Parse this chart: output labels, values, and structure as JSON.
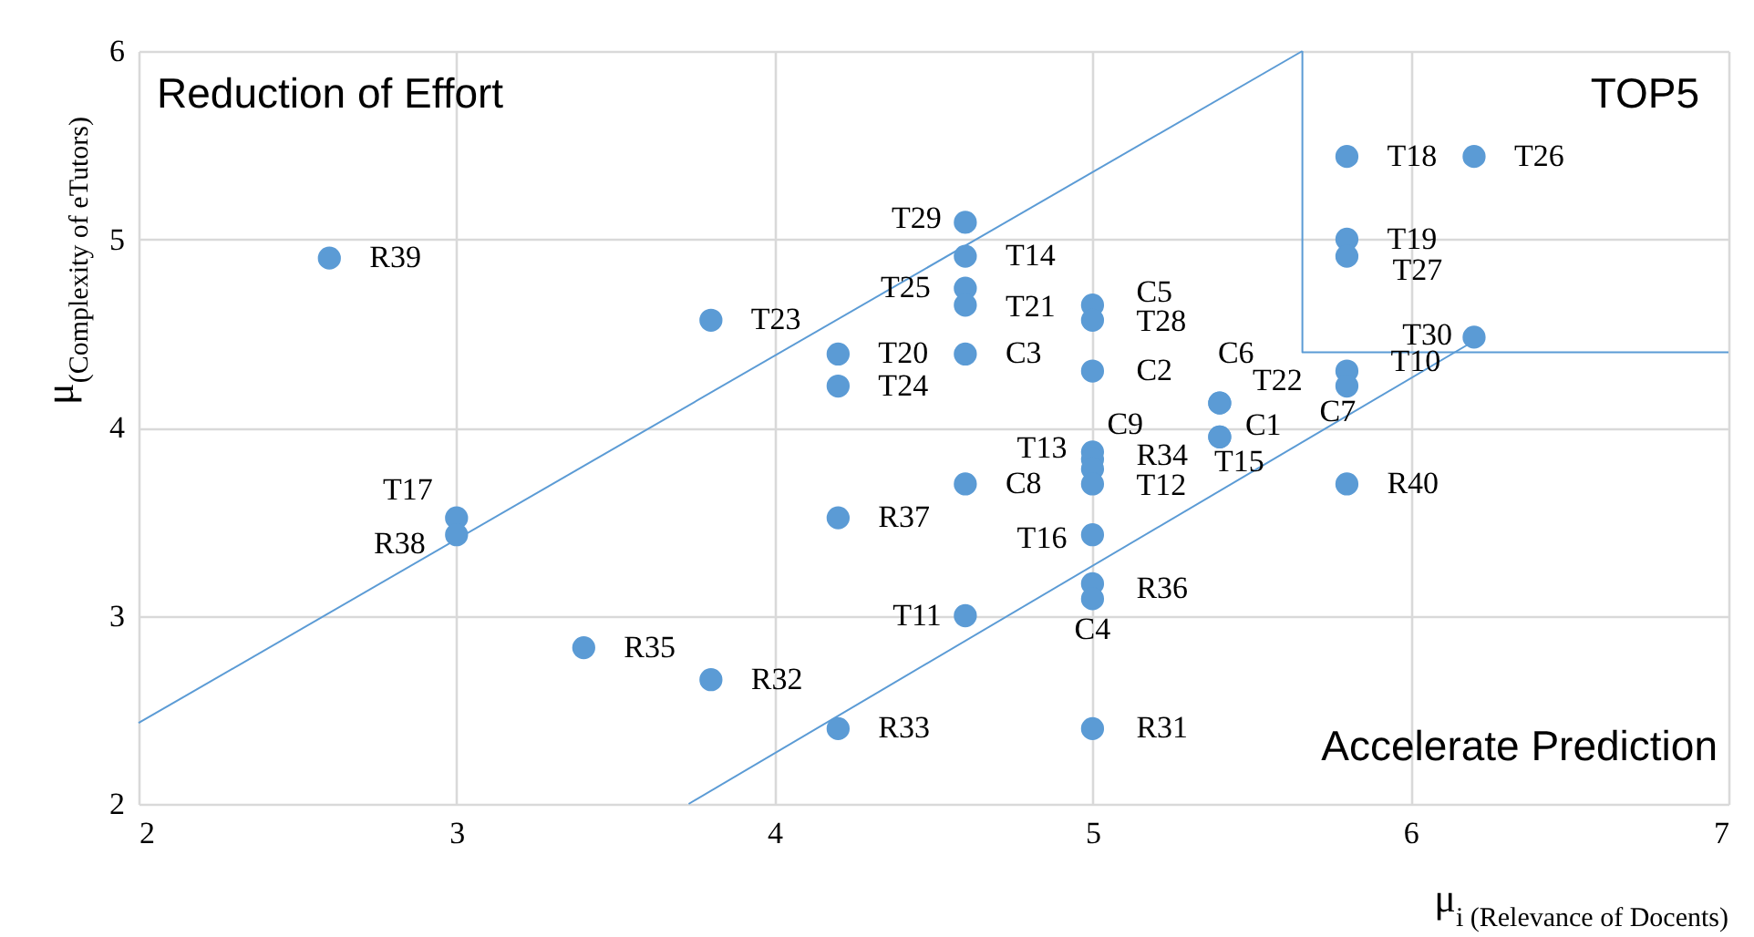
{
  "chart_data": {
    "type": "scatter",
    "xlabel": "μ$_{i (Relevance of Docents)}$",
    "ylabel": "μ$_{(Complexity of eTutors)}$",
    "annotations": [
      "Reduction of Effort",
      "TOP5",
      "Accelerate Prediction"
    ],
    "xlim": [
      2,
      7
    ],
    "ylim": [
      2,
      6
    ],
    "xticks": [
      2,
      3,
      4,
      5,
      6,
      7
    ],
    "yticks": [
      2,
      3,
      4,
      5,
      6
    ],
    "grid": true,
    "series": [
      {
        "marker": "circle",
        "color": "#5b9bd5",
        "x": [
          2.6,
          3.8,
          3.0,
          3.0,
          3.4,
          3.8,
          4.2,
          4.2,
          4.2,
          4.2,
          4.6,
          4.6,
          4.6,
          4.6,
          4.6,
          4.6,
          4.6,
          5.0,
          5.0,
          5.0,
          5.0,
          5.0,
          5.0,
          5.0,
          5.0,
          5.0,
          5.0,
          5.0,
          5.4,
          5.4,
          5.4,
          5.4,
          5.8,
          6.2,
          5.8,
          5.8,
          5.8,
          5.8,
          6.2,
          5.8
        ],
        "values": [
          4.9,
          4.57,
          3.52,
          3.43,
          2.83,
          2.66,
          2.4,
          4.39,
          4.22,
          3.52,
          5.09,
          4.91,
          4.74,
          4.65,
          4.39,
          3.7,
          3.0,
          4.65,
          4.57,
          4.3,
          3.87,
          3.83,
          3.78,
          3.7,
          3.43,
          3.17,
          3.09,
          2.4,
          4.13,
          4.13,
          3.95,
          3.95,
          5.44,
          5.44,
          5.0,
          4.91,
          4.3,
          4.22,
          4.48,
          3.7
        ],
        "value_labels": [
          "R39",
          "T23",
          "T17",
          "R38",
          "R35",
          "R32",
          "R33",
          "T20",
          "T24",
          "R37",
          "T29",
          "T14",
          "T25",
          "T21",
          "C3",
          "C8",
          "T11",
          "C5",
          "T28",
          "C2",
          "C9",
          "T13",
          "R34",
          "T12",
          "T16",
          "R36",
          "C4",
          "R31",
          "C6",
          "T22",
          "C1",
          "T15",
          "T18",
          "T26",
          "T19",
          "T27",
          "T10",
          "C7",
          "T30",
          "R40"
        ]
      },
      {
        "type": "line",
        "line_style": "solid",
        "marker": "none",
        "color": "#5b9bd5",
        "x": [
          2,
          5.66
        ],
        "values": [
          2.43,
          6
        ]
      },
      {
        "type": "line",
        "line_style": "solid",
        "marker": "none",
        "color": "#5b9bd5",
        "x": [
          3.73,
          6.2
        ],
        "values": [
          2,
          4.46
        ]
      },
      {
        "type": "line",
        "line_style": "solid",
        "marker": "none",
        "color": "#5b9bd5",
        "x": [
          5.66,
          5.66,
          7
        ],
        "values": [
          6,
          4.4,
          4.4
        ]
      }
    ]
  }
}
